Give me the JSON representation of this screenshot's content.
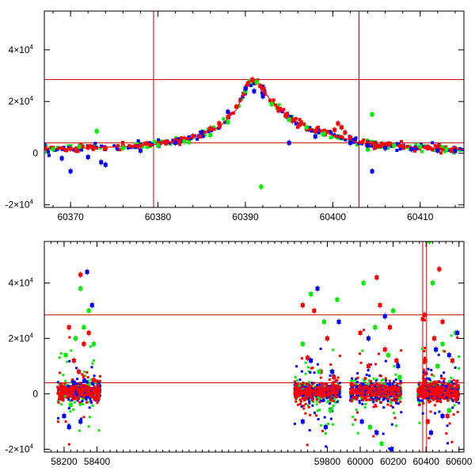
{
  "chart_data": [
    {
      "type": "scatter",
      "panel": "zoom",
      "xlim": [
        60367,
        60415
      ],
      "ylim": [
        -21000,
        55000
      ],
      "x_ticks": [
        60370,
        60380,
        60390,
        60400,
        60410
      ],
      "y_ticks": [
        {
          "value": -20000,
          "label": "-2×10",
          "exp": "4"
        },
        {
          "value": 0,
          "label": "0",
          "exp": ""
        },
        {
          "value": 20000,
          "label": "2×10",
          "exp": "4"
        },
        {
          "value": 40000,
          "label": "4×10",
          "exp": "4"
        }
      ],
      "hlines": [
        28500,
        4000
      ],
      "vlines": [
        60379.5,
        60403
      ],
      "grid": false,
      "model_curve": {
        "color": "#ff0000",
        "x": [
          60367,
          60376,
          60380,
          60384,
          60387,
          60389,
          60390.5,
          60391.5,
          60393,
          60395,
          60397,
          60400,
          60403,
          60408,
          60415
        ],
        "y": [
          1500,
          2500,
          3500,
          6000,
          10000,
          17000,
          28000,
          27000,
          20000,
          14000,
          10000,
          7000,
          4000,
          2500,
          1500
        ]
      },
      "series": [
        {
          "name": "",
          "color": "#ff0000",
          "x": [
            60368,
            60370,
            60372,
            60374,
            60376,
            60378,
            60380,
            60381,
            60382,
            60383,
            60384,
            60385,
            60386,
            60387,
            60388,
            60389,
            60389.8,
            60390.3,
            60390.8,
            60391.2,
            60391.7,
            60392.2,
            60393,
            60393.8,
            60394.6,
            60395.4,
            60396.2,
            60397,
            60398,
            60399,
            60400.2,
            60400.6,
            60401,
            60401.4,
            60402,
            60404,
            60406,
            60408,
            60410,
            60412,
            60414
          ],
          "y": [
            1800,
            1700,
            2200,
            2000,
            2700,
            3000,
            3600,
            4200,
            4900,
            5600,
            6600,
            7800,
            9600,
            11500,
            14000,
            18000,
            23000,
            27000,
            28500,
            27500,
            26000,
            23000,
            19000,
            16500,
            14500,
            12500,
            11000,
            9500,
            8500,
            7500,
            9000,
            11500,
            10000,
            8000,
            6000,
            4000,
            3300,
            2700,
            2400,
            2100,
            1800
          ]
        },
        {
          "name": "",
          "color": "#00ee00",
          "x": [
            60368,
            60371,
            60373,
            60376,
            60380,
            60383,
            60386,
            60388,
            60390,
            60391.3,
            60391.8,
            60393,
            60395,
            60397,
            60399,
            60402,
            60404,
            60404.5,
            60407,
            60410,
            60413
          ],
          "y": [
            1500,
            2500,
            8500,
            2000,
            3000,
            4500,
            7000,
            12000,
            24000,
            27500,
            -13000,
            19000,
            13000,
            10000,
            7500,
            4000,
            1500,
            15000,
            3000,
            2500,
            1500
          ]
        },
        {
          "name": "",
          "color": "#0000ff",
          "x": [
            60369,
            60370,
            60372,
            60373.5,
            60374,
            60378,
            60382,
            60385,
            60388,
            60390,
            60391,
            60392,
            60395,
            60398,
            60402,
            60404,
            60404.5,
            60406,
            60409,
            60412,
            60414
          ],
          "y": [
            -2000,
            -7000,
            -1500,
            -3500,
            -4500,
            1000,
            4000,
            8000,
            16000,
            25000,
            24000,
            22000,
            4000,
            6500,
            4000,
            3000,
            -7000,
            2000,
            1500,
            1000,
            800
          ]
        }
      ]
    },
    {
      "type": "scatter",
      "panel": "full",
      "xlim": [
        58080,
        60630
      ],
      "ylim": [
        -21000,
        55000
      ],
      "x_ticks": [
        58200,
        58400,
        59800,
        60000,
        60200,
        60400,
        60600
      ],
      "y_ticks": [
        {
          "value": -20000,
          "label": "-2×10",
          "exp": "4"
        },
        {
          "value": 0,
          "label": "0",
          "exp": ""
        },
        {
          "value": 20000,
          "label": "2×10",
          "exp": "4"
        },
        {
          "value": 40000,
          "label": "4×10",
          "exp": "4"
        }
      ],
      "hlines": [
        28500,
        4000
      ],
      "vlines": [
        60379.5,
        60403
      ],
      "grid": false,
      "seasons": [
        [
          58160,
          58420
        ],
        [
          59600,
          59880
        ],
        [
          59940,
          60250
        ],
        [
          60350,
          60600
        ]
      ],
      "series": [
        {
          "name": "",
          "color": "#ff0000",
          "x": [
            58230,
            58260,
            58290,
            58300,
            58320,
            58350,
            58380,
            59650,
            59680,
            59720,
            59760,
            59800,
            59840,
            60000,
            60050,
            60100,
            60120,
            60150,
            60180,
            60220,
            60380,
            60390,
            60395,
            60410,
            60450,
            60480,
            60500,
            60530,
            60560
          ],
          "y": [
            24000,
            12000,
            8000,
            43000,
            18000,
            22000,
            5000,
            32000,
            13000,
            30000,
            8000,
            20000,
            6000,
            22000,
            10000,
            42000,
            32000,
            16000,
            24000,
            12000,
            27000,
            28500,
            12000,
            -10000,
            20000,
            45000,
            26000,
            -8000,
            12000
          ]
        },
        {
          "name": "",
          "color": "#00ee00",
          "x": [
            58210,
            58240,
            58270,
            58300,
            58320,
            58350,
            58380,
            59650,
            59700,
            59750,
            59780,
            59820,
            59860,
            60020,
            60060,
            60090,
            60130,
            60170,
            60200,
            60240,
            60420,
            60440,
            60470,
            60500,
            60540,
            60580
          ],
          "y": [
            14000,
            -4000,
            20000,
            38000,
            24000,
            30000,
            18000,
            18000,
            36000,
            8000,
            26000,
            -6000,
            34000,
            40000,
            -12000,
            24000,
            -18000,
            14000,
            30000,
            6000,
            55000,
            40000,
            10000,
            18000,
            -6000,
            22000
          ]
        },
        {
          "name": "",
          "color": "#0000ff",
          "x": [
            58200,
            58230,
            58260,
            58300,
            58340,
            58370,
            59650,
            59700,
            59740,
            59790,
            59830,
            59870,
            60010,
            60050,
            60100,
            60150,
            60190,
            60230,
            60430,
            60460,
            60500,
            60540,
            60590
          ],
          "y": [
            -8000,
            -12000,
            4000,
            -10000,
            44000,
            32000,
            -10000,
            12000,
            38000,
            -12000,
            8000,
            26000,
            -10000,
            20000,
            -14000,
            28000,
            -20000,
            10000,
            -14000,
            16000,
            -8000,
            14000,
            22000
          ]
        }
      ]
    }
  ]
}
